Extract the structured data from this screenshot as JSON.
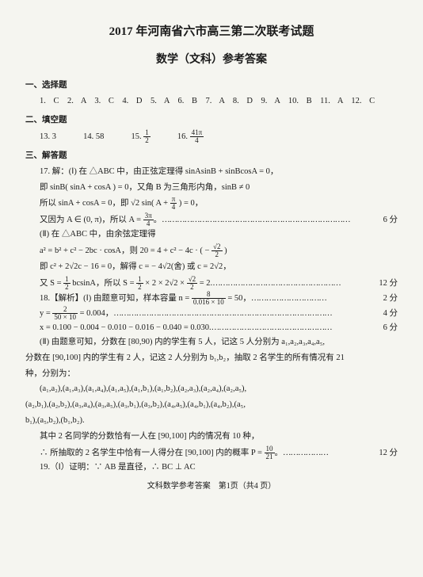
{
  "title": "2017 年河南省六市高三第二次联考试题",
  "subtitle": "数学（文科）参考答案",
  "s1_head": "一、选择题",
  "s1_answers": "1. C　2. A　3. C　4. D　5. A　6. B　7. A　8. D　9. A　10. B　11. A　12. C",
  "s2_head": "二、填空题",
  "s2_a1": "13. 3",
  "s2_a2": "14. 58",
  "s2_a3_pre": "15. ",
  "s2_a3_num": "1",
  "s2_a3_den": "2",
  "s2_a4_pre": "16. ",
  "s2_a4_num": "41π",
  "s2_a4_den": "4",
  "s3_head": "三、解答题",
  "q17_l1": "17. 解：(Ⅰ) 在 △ABC 中，由正弦定理得 sinAsinB + sinBcosA = 0，",
  "q17_l2": "即 sinB( sinA + cosA ) = 0，又角 B 为三角形内角，sinB ≠ 0",
  "q17_l3a": "所以 sinA + cosA = 0，即 √2 sin( A + ",
  "q17_l3_num": "π",
  "q17_l3_den": "4",
  "q17_l3b": " ) = 0，",
  "q17_l4a": "又因为 A ∈ (0, π)，所以 A = ",
  "q17_l4_num": "3π",
  "q17_l4_den": "4",
  "q17_l4b": "。",
  "pts6": "6 分",
  "q17_l5": "(Ⅱ) 在 △ABC 中，由余弦定理得",
  "q17_l6a": "a² = b² + c² − 2bc · cosA，则 20 = 4 + c² − 4c · ( − ",
  "q17_l6_num": "√2",
  "q17_l6_den": "2",
  "q17_l6b": " )",
  "q17_l7": "即 c² + 2√2c − 16 = 0，解得 c = − 4√2(舍) 或 c = 2√2，",
  "q17_l8a": "又 S = ",
  "q17_l8_n1": "1",
  "q17_l8_d1": "2",
  "q17_l8b": " bcsinA，所以 S = ",
  "q17_l8_n2": "1",
  "q17_l8_d2": "2",
  "q17_l8c": " × 2 × 2√2 × ",
  "q17_l8_n3": "√2",
  "q17_l8_d3": "2",
  "q17_l8d": " = 2. ",
  "pts12": "12 分",
  "q18_l1a": "18.【解析】(Ⅰ) 由题意可知，样本容量 n = ",
  "q18_l1_num": "8",
  "q18_l1_den": "0.016 × 10",
  "q18_l1b": " = 50，",
  "pts2": "2 分",
  "q18_l2a": "y = ",
  "q18_l2_num": "2",
  "q18_l2_den": "50 × 10",
  "q18_l2b": " = 0.004，",
  "pts4": "4 分",
  "q18_l3": "x = 0.100 − 0.004 − 0.010 − 0.016 − 0.040 = 0.030.",
  "q18_l4": "(Ⅱ) 由题意可知，分数在 [80,90) 内的学生有 5 人，记这 5 人分别为 a₁,a₂,a₃,a₄,a₅,",
  "q18_l5": "分数在 [90,100] 内的学生有 2 人，记这 2 人分别为 b₁,b₂，抽取 2 名学生的所有情况有 21",
  "q18_l6": "种，分别为：",
  "q18_l7": "(a₁,a₂),(a₁,a₃),(a₁,a₄),(a₁,a₅),(a₁,b₁),(a₁,b₂),(a₂,a₃),(a₂,a₄),(a₂,a₅),",
  "q18_l8": "(a₂,b₁),(a₂,b₂),(a₃,a₄),(a₃,a₅),(a₃,b₁),(a₃,b₂),(a₄,a₅),(a₄,b₁),(a₄,b₂),(a₅,",
  "q18_l9": "b₁),(a₅,b₂),(b₁,b₂).",
  "q18_l10": "其中 2 名同学的分数恰有一人在 [90,100] 内的情况有 10 种，",
  "q18_l11a": "∴ 所抽取的 2 名学生中恰有一人得分在 [90,100] 内的概率 P = ",
  "q18_l11_num": "10",
  "q18_l11_den": "21",
  "q18_l11b": "。",
  "q19_l1": "19.（Ⅰ）证明：∵ AB 是直径，∴ BC ⊥ AC",
  "footer": "文科数学参考答案　第1页（共4 页）"
}
